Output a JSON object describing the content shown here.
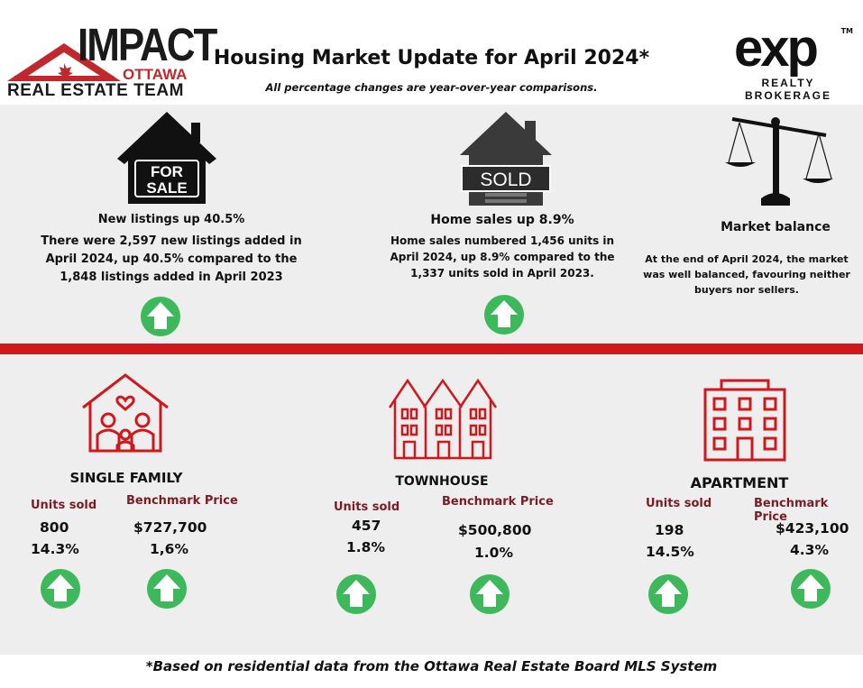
{
  "header": {
    "brand_impact": "IMPACT",
    "brand_ottawa": "OTTAWA",
    "brand_team": "REAL ESTATE TEAM",
    "title": "Housing Market Update for April 2024*",
    "subtitle": "All percentage changes are year-over-year comparisons.",
    "exp_logo": "exp",
    "exp_tm": "TM",
    "exp_realty": "REALTY",
    "exp_brokerage": "BROKERAGE"
  },
  "highlights": [
    {
      "icon": "for-sale-house-icon",
      "sign_line1": "FOR",
      "sign_line2": "SALE",
      "heading": "New listings up 40.5%",
      "body": "There were 2,597 new listings added in April 2024, up 40.5% compared to the 1,848 listings added in April 2023",
      "trend": "up"
    },
    {
      "icon": "sold-house-icon",
      "sign_text": "SOLD",
      "heading": "Home sales up 8.9%",
      "body": "Home sales numbered 1,456 units in April 2024, up 8.9% compared to the 1,337 units sold in April 2023.",
      "trend": "up"
    },
    {
      "icon": "balance-scale-icon",
      "heading": "Market balance",
      "body": "At the end of April 2024, the market was well balanced, favouring neither buyers nor sellers."
    }
  ],
  "segments": [
    {
      "icon": "family-house-icon",
      "title": "SINGLE FAMILY",
      "units_label": "Units sold",
      "units_value": "800",
      "units_change": "14.3%",
      "price_label": "Benchmark Price",
      "price_value": "$727,700",
      "price_change": "1,6%"
    },
    {
      "icon": "townhouse-icon",
      "title": "TOWNHOUSE",
      "units_label": "Units sold",
      "units_value": "457",
      "units_change": "1.8%",
      "price_label": "Benchmark Price",
      "price_value": "$500,800",
      "price_change": "1.0%"
    },
    {
      "icon": "apartment-icon",
      "title": "APARTMENT",
      "units_label": "Units sold",
      "units_value": "198",
      "units_change": "14.5%",
      "price_label": "Benchmark Price",
      "price_value": "$423,100",
      "price_change": "4.3%"
    }
  ],
  "footer": "*Based on residential data from the Ottawa Real Estate Board MLS System",
  "colors": {
    "accent_red": "#d0181c",
    "label_maroon": "#7a1c23",
    "arrow_green": "#3db85a",
    "panel_grey": "#eeeeee"
  }
}
